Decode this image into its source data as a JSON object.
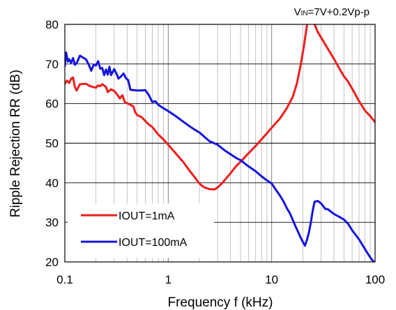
{
  "chart_data": {
    "type": "line",
    "title": "",
    "condition": {
      "prefix": "V",
      "subscript": "IN",
      "suffix": "=7V+0.2Vp-p"
    },
    "xlabel": "Frequency f (kHz)",
    "ylabel": "Ripple Rejection RR (dB)",
    "xscale": "log",
    "xlim": [
      0.1,
      100
    ],
    "ylim": [
      20,
      80
    ],
    "x_ticks": [
      {
        "value": 0.1,
        "label": "0.1"
      },
      {
        "value": 1,
        "label": "1"
      },
      {
        "value": 10,
        "label": "10"
      },
      {
        "value": 100,
        "label": "100"
      }
    ],
    "y_ticks": [
      {
        "value": 20,
        "label": "20"
      },
      {
        "value": 30,
        "label": "30"
      },
      {
        "value": 40,
        "label": "40"
      },
      {
        "value": 50,
        "label": "50"
      },
      {
        "value": 60,
        "label": "60"
      },
      {
        "value": 70,
        "label": "70"
      },
      {
        "value": 80,
        "label": "80"
      }
    ],
    "grid": true,
    "legend_position": "lower-left",
    "series": [
      {
        "name": "IOUT=1mA",
        "color": "#ee1c1c",
        "points": [
          [
            0.1,
            65
          ],
          [
            0.105,
            65.8
          ],
          [
            0.11,
            65.2
          ],
          [
            0.115,
            66.3
          ],
          [
            0.12,
            66.6
          ],
          [
            0.125,
            64.2
          ],
          [
            0.13,
            63.3
          ],
          [
            0.14,
            64.9
          ],
          [
            0.16,
            65
          ],
          [
            0.17,
            64.6
          ],
          [
            0.18,
            64.3
          ],
          [
            0.2,
            64
          ],
          [
            0.21,
            64.6
          ],
          [
            0.22,
            64.4
          ],
          [
            0.23,
            64.9
          ],
          [
            0.25,
            64.2
          ],
          [
            0.26,
            62.9
          ],
          [
            0.28,
            63.6
          ],
          [
            0.3,
            63.2
          ],
          [
            0.32,
            62.3
          ],
          [
            0.34,
            61.3
          ],
          [
            0.36,
            62.1
          ],
          [
            0.38,
            60.4
          ],
          [
            0.4,
            60.1
          ],
          [
            0.43,
            59.7
          ],
          [
            0.46,
            59.3
          ],
          [
            0.48,
            57.8
          ],
          [
            0.5,
            57.1
          ],
          [
            0.55,
            56.6
          ],
          [
            0.6,
            55.6
          ],
          [
            0.65,
            54.7
          ],
          [
            0.7,
            54.1
          ],
          [
            0.8,
            52.2
          ],
          [
            0.9,
            50.9
          ],
          [
            1.0,
            49.6
          ],
          [
            1.2,
            47.2
          ],
          [
            1.4,
            45.2
          ],
          [
            1.6,
            43.1
          ],
          [
            1.8,
            41.4
          ],
          [
            2.0,
            39.8
          ],
          [
            2.2,
            38.9
          ],
          [
            2.5,
            38.4
          ],
          [
            2.8,
            38.3
          ],
          [
            3.0,
            38.8
          ],
          [
            3.3,
            39.8
          ],
          [
            3.6,
            41
          ],
          [
            4.0,
            42.4
          ],
          [
            4.5,
            44.1
          ],
          [
            5.0,
            45.3
          ],
          [
            6.0,
            47.5
          ],
          [
            7.0,
            49.3
          ],
          [
            8.0,
            51
          ],
          [
            9.0,
            52.5
          ],
          [
            10,
            53.9
          ],
          [
            12,
            56.2
          ],
          [
            14,
            58.8
          ],
          [
            16,
            61.7
          ],
          [
            17.5,
            65
          ],
          [
            19,
            69.5
          ],
          [
            20.5,
            74.5
          ],
          [
            22,
            80
          ],
          [
            24,
            83
          ],
          [
            26,
            80
          ],
          [
            28,
            78
          ],
          [
            31,
            76.1
          ],
          [
            35,
            73.8
          ],
          [
            40,
            71.3
          ],
          [
            45,
            68.9
          ],
          [
            50,
            66.9
          ],
          [
            55,
            65.5
          ],
          [
            62,
            63.1
          ],
          [
            70,
            60.6
          ],
          [
            80,
            58.2
          ],
          [
            90,
            56.8
          ],
          [
            100,
            55.3
          ]
        ]
      },
      {
        "name": "IOUT=100mA",
        "color": "#1414dc",
        "points": [
          [
            0.1,
            69.5
          ],
          [
            0.103,
            72.9
          ],
          [
            0.107,
            70.6
          ],
          [
            0.11,
            71.2
          ],
          [
            0.115,
            70.3
          ],
          [
            0.12,
            71.5
          ],
          [
            0.125,
            69.8
          ],
          [
            0.13,
            70.2
          ],
          [
            0.14,
            72.1
          ],
          [
            0.15,
            71.6
          ],
          [
            0.16,
            71.2
          ],
          [
            0.17,
            69.9
          ],
          [
            0.18,
            68.3
          ],
          [
            0.19,
            69.8
          ],
          [
            0.2,
            69.6
          ],
          [
            0.21,
            70.7
          ],
          [
            0.22,
            68.8
          ],
          [
            0.23,
            69
          ],
          [
            0.24,
            67.2
          ],
          [
            0.25,
            68.6
          ],
          [
            0.26,
            67.3
          ],
          [
            0.27,
            69.3
          ],
          [
            0.28,
            67.2
          ],
          [
            0.3,
            68.7
          ],
          [
            0.32,
            67.2
          ],
          [
            0.33,
            66.3
          ],
          [
            0.35,
            66.9
          ],
          [
            0.37,
            67.6
          ],
          [
            0.39,
            66.4
          ],
          [
            0.41,
            65.9
          ],
          [
            0.43,
            63.5
          ],
          [
            0.46,
            63.4
          ],
          [
            0.5,
            63.3
          ],
          [
            0.55,
            63.3
          ],
          [
            0.6,
            63.4
          ],
          [
            0.65,
            62.1
          ],
          [
            0.7,
            60.4
          ],
          [
            0.75,
            60.6
          ],
          [
            0.8,
            59.7
          ],
          [
            0.9,
            58.8
          ],
          [
            1.0,
            58.1
          ],
          [
            1.2,
            56.7
          ],
          [
            1.4,
            55.4
          ],
          [
            1.6,
            54.3
          ],
          [
            1.8,
            53.4
          ],
          [
            2.0,
            52.7
          ],
          [
            2.5,
            50.5
          ],
          [
            3.0,
            49.6
          ],
          [
            3.5,
            48.2
          ],
          [
            4.0,
            47.2
          ],
          [
            4.5,
            46.3
          ],
          [
            5.0,
            45.7
          ],
          [
            6.0,
            44.1
          ],
          [
            7.0,
            42.9
          ],
          [
            8.0,
            41.6
          ],
          [
            9.0,
            40.6
          ],
          [
            10,
            39.8
          ],
          [
            11,
            38.2
          ],
          [
            12,
            36.8
          ],
          [
            13,
            35.3
          ],
          [
            14,
            33.6
          ],
          [
            15,
            32.3
          ],
          [
            16,
            30.6
          ],
          [
            17,
            29
          ],
          [
            18,
            27.6
          ],
          [
            19,
            26.2
          ],
          [
            20,
            25.1
          ],
          [
            21,
            24.1
          ],
          [
            22,
            25.7
          ],
          [
            23,
            27.6
          ],
          [
            24,
            30.2
          ],
          [
            25,
            33.1
          ],
          [
            26,
            35.2
          ],
          [
            28,
            35.4
          ],
          [
            30,
            34.8
          ],
          [
            33,
            33.4
          ],
          [
            35,
            33.3
          ],
          [
            40,
            32.1
          ],
          [
            45,
            31.4
          ],
          [
            50,
            30.7
          ],
          [
            55,
            29.6
          ],
          [
            60,
            28
          ],
          [
            70,
            25.7
          ],
          [
            80,
            23.2
          ],
          [
            90,
            21.1
          ],
          [
            100,
            19.6
          ]
        ]
      }
    ]
  }
}
